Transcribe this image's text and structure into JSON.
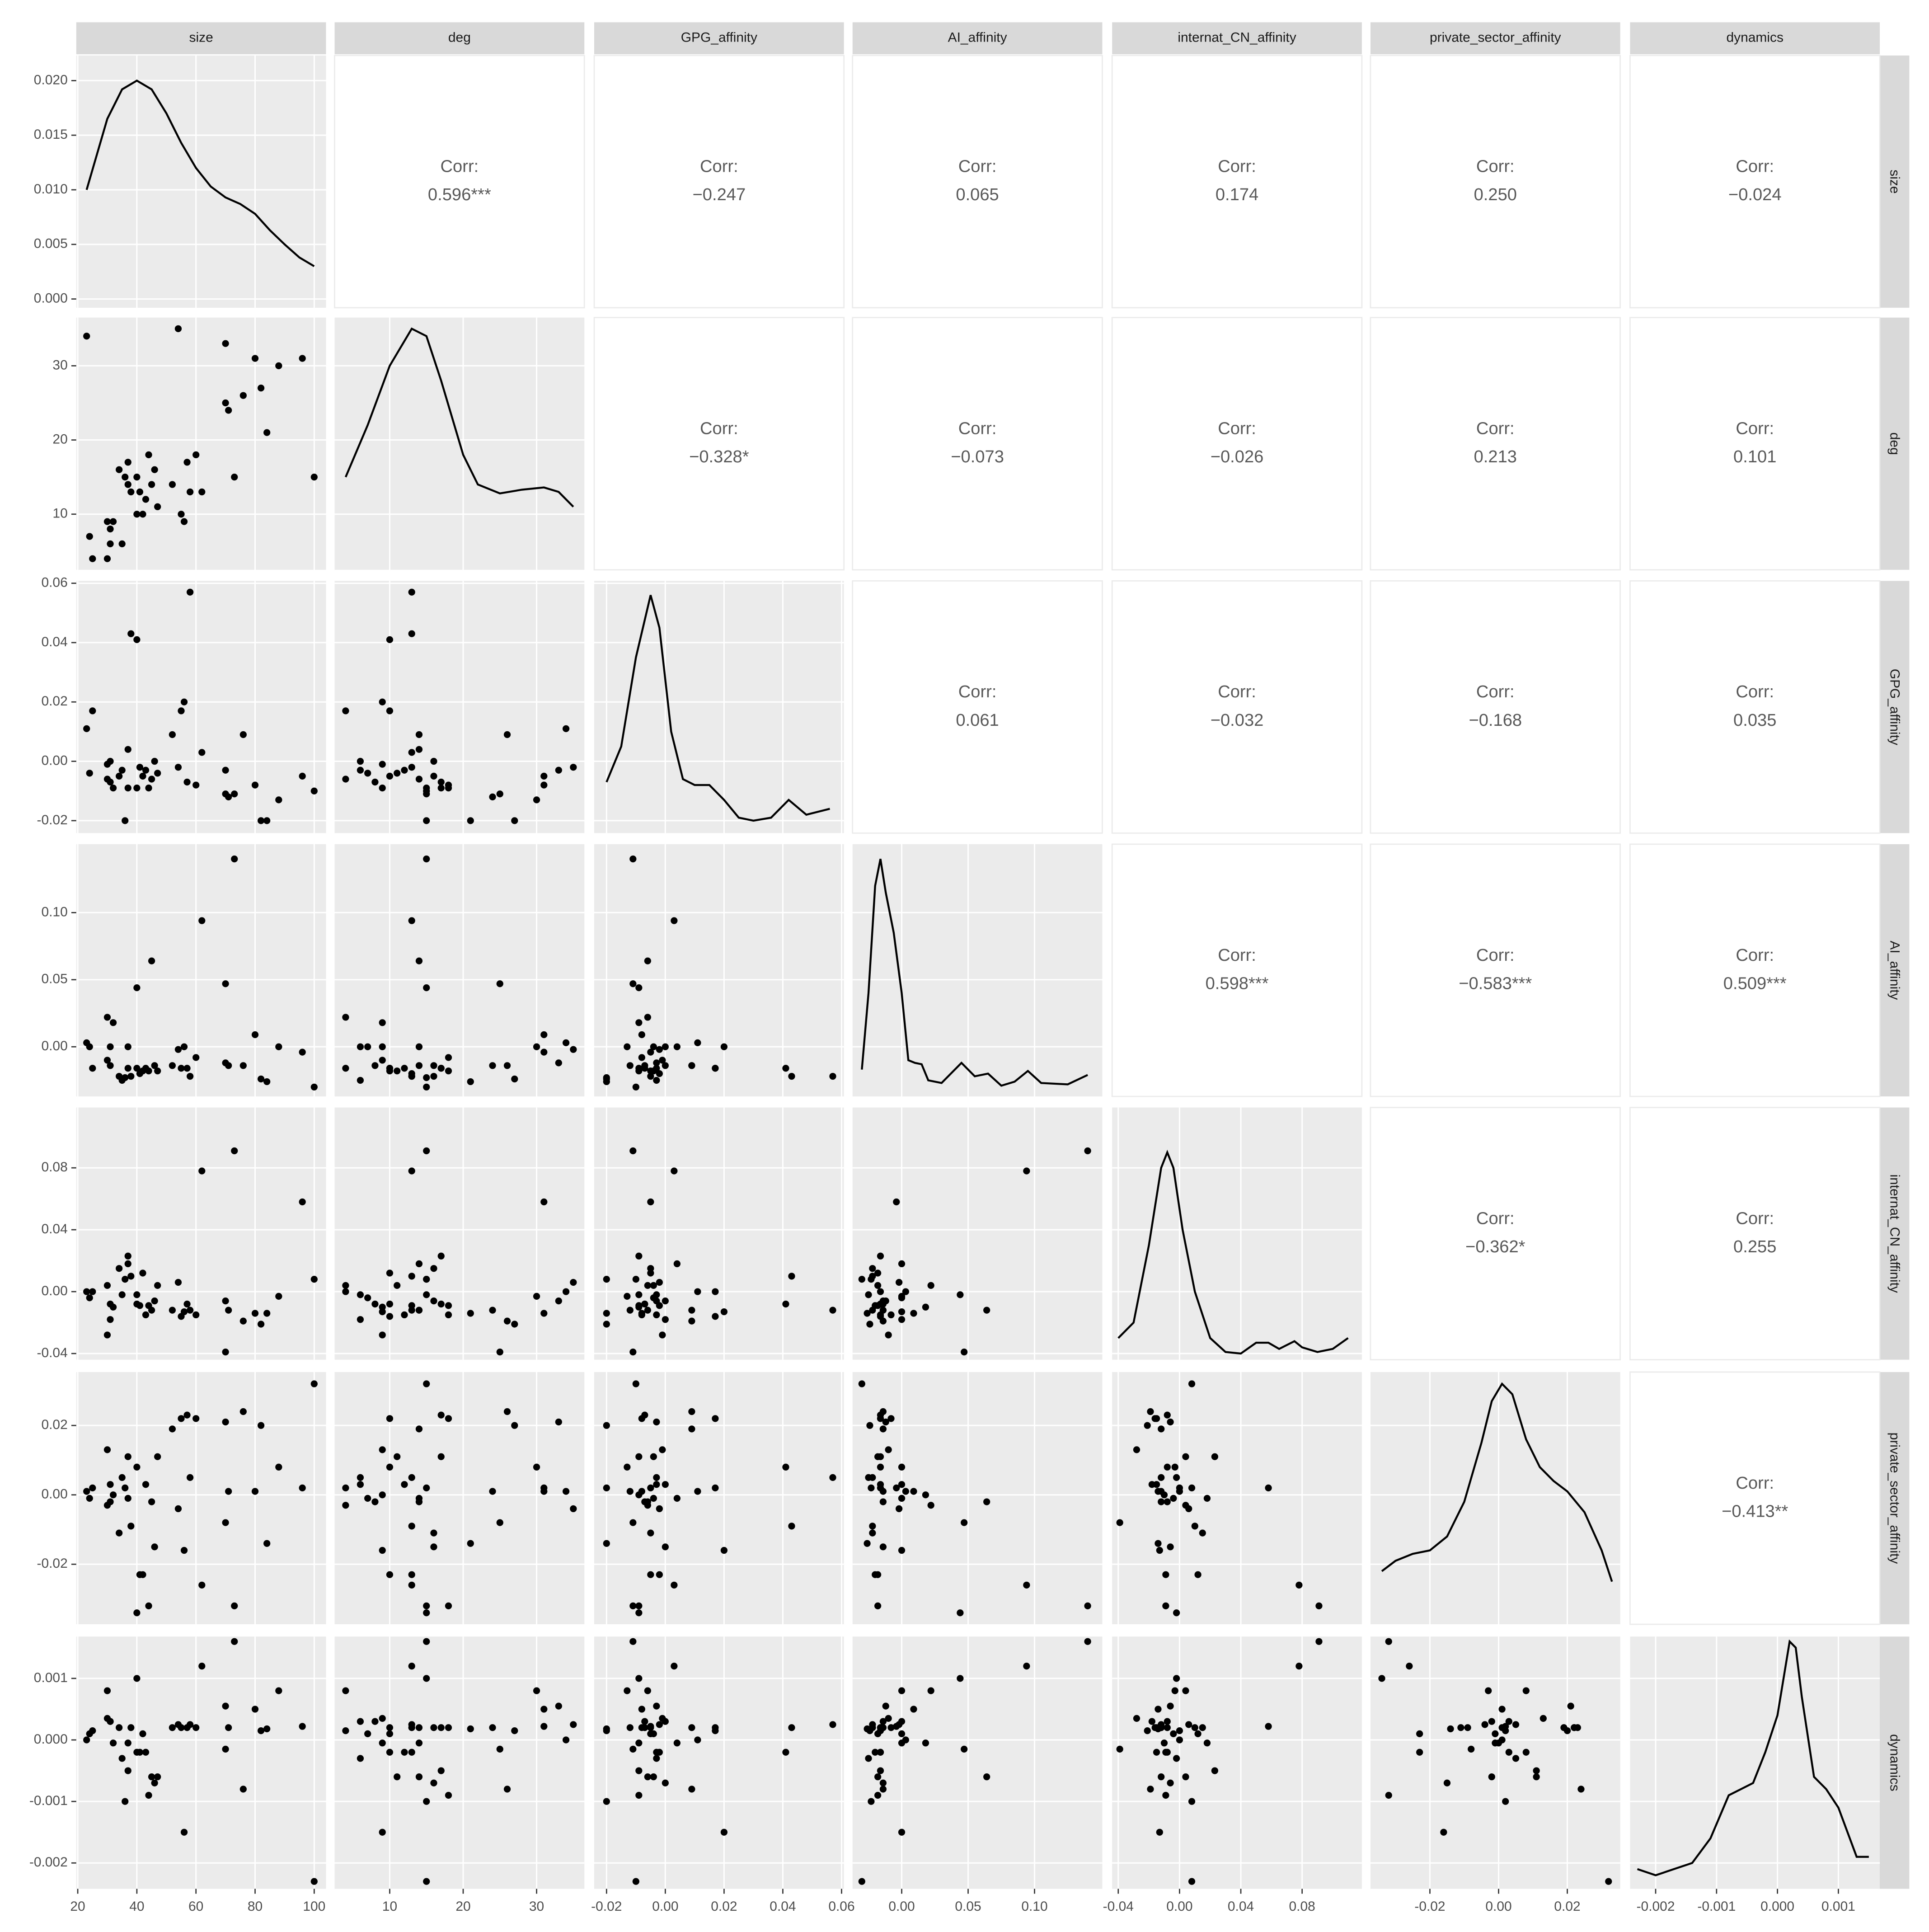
{
  "chart_data": {
    "type": "scatter-matrix",
    "corr_label": "Corr:",
    "point_color": "#000000",
    "line_color": "#000000",
    "density_ylim": [
      -0.0008,
      0.0223
    ],
    "density_yticks": [
      {
        "value": 0,
        "label": "0.000"
      },
      {
        "value": 0.005,
        "label": "0.005"
      },
      {
        "value": 0.01,
        "label": "0.010"
      },
      {
        "value": 0.015,
        "label": "0.015"
      },
      {
        "value": 0.02,
        "label": "0.020"
      }
    ],
    "variables": [
      {
        "name": "size",
        "lim": [
          19.5,
          104
        ],
        "ticks": [
          20,
          40,
          60,
          80,
          100
        ],
        "values": [
          23,
          24,
          25,
          30,
          30,
          31,
          31,
          32,
          34,
          35,
          36,
          37,
          37,
          38,
          40,
          40,
          41,
          42,
          43,
          44,
          45,
          46,
          47,
          52,
          54,
          55,
          56,
          57,
          58,
          60,
          62,
          70,
          70,
          71,
          73,
          76,
          80,
          82,
          84,
          88,
          96,
          100
        ],
        "density": {
          "x": [
            23,
            30,
            35,
            40,
            45,
            50,
            55,
            60,
            65,
            70,
            75,
            80,
            85,
            90,
            95,
            100
          ],
          "y": [
            0.01,
            0.0165,
            0.0192,
            0.02,
            0.0192,
            0.017,
            0.0143,
            0.012,
            0.0103,
            0.0093,
            0.0087,
            0.0078,
            0.0063,
            0.005,
            0.0038,
            0.003
          ]
        }
      },
      {
        "name": "deg",
        "lim": [
          2.5,
          36.5
        ],
        "ticks": [
          10,
          20,
          30
        ],
        "values": [
          34,
          7,
          4,
          4,
          9,
          6,
          8,
          9,
          16,
          6,
          15,
          17,
          14,
          13,
          15,
          10,
          13,
          10,
          12,
          18,
          14,
          16,
          11,
          14,
          35,
          10,
          9,
          17,
          13,
          18,
          13,
          33,
          25,
          24,
          15,
          26,
          31,
          27,
          21,
          30,
          31,
          15
        ],
        "density": {
          "x": [
            4,
            7,
            10,
            13,
            15,
            17,
            20,
            22,
            25,
            28,
            31,
            33,
            35
          ],
          "y": [
            15,
            22,
            30,
            35,
            34,
            28,
            18,
            14,
            12.8,
            13.3,
            13.6,
            13,
            11
          ]
        }
      },
      {
        "name": "GPG_affinity",
        "lim": [
          -0.0242,
          0.0608
        ],
        "ticks": [
          -0.02,
          {
            "value": 0,
            "label": "0.00"
          },
          0.02,
          0.04,
          0.06
        ],
        "values": [
          0.011,
          -0.004,
          0.017,
          -0.006,
          -0.001,
          0.0,
          -0.007,
          -0.009,
          -0.005,
          -0.003,
          -0.02,
          -0.009,
          0.004,
          0.043,
          -0.009,
          0.041,
          -0.002,
          -0.005,
          -0.003,
          -0.009,
          -0.006,
          0.0,
          -0.004,
          0.009,
          -0.002,
          0.017,
          0.02,
          -0.007,
          0.057,
          -0.008,
          0.003,
          -0.003,
          -0.011,
          -0.012,
          -0.011,
          0.009,
          -0.008,
          -0.02,
          -0.02,
          -0.013,
          -0.005,
          -0.01
        ],
        "density": {
          "x": [
            -0.02,
            -0.015,
            -0.01,
            -0.005,
            -0.002,
            0.002,
            0.006,
            0.01,
            0.015,
            0.02,
            0.025,
            0.03,
            0.036,
            0.042,
            0.048,
            0.056
          ],
          "y": [
            -0.007,
            0.005,
            0.035,
            0.056,
            0.045,
            0.01,
            -0.006,
            -0.008,
            -0.008,
            -0.013,
            -0.019,
            -0.02,
            -0.019,
            -0.013,
            -0.018,
            -0.016
          ]
        }
      },
      {
        "name": "AI_affinity",
        "lim": [
          -0.037,
          0.151
        ],
        "ticks": [
          {
            "value": 0,
            "label": "0.00"
          },
          0.05,
          {
            "value": 0.1,
            "label": "0.10"
          }
        ],
        "values": [
          0.003,
          0.0,
          -0.016,
          0.022,
          -0.01,
          0.0,
          -0.014,
          0.018,
          -0.022,
          -0.025,
          -0.023,
          -0.016,
          0.0,
          -0.022,
          0.044,
          -0.016,
          -0.02,
          -0.018,
          -0.016,
          -0.018,
          0.064,
          -0.014,
          -0.018,
          -0.014,
          -0.002,
          -0.016,
          0.0,
          -0.016,
          -0.022,
          -0.008,
          0.094,
          -0.012,
          0.047,
          -0.014,
          0.14,
          -0.014,
          0.009,
          -0.024,
          -0.026,
          0.0,
          -0.004,
          -0.03
        ],
        "density": {
          "x": [
            -0.03,
            -0.025,
            -0.02,
            -0.016,
            -0.012,
            -0.006,
            0.0,
            0.005,
            0.01,
            0.015,
            0.02,
            0.03,
            0.045,
            0.055,
            0.065,
            0.075,
            0.085,
            0.095,
            0.105,
            0.125,
            0.14
          ],
          "y": [
            -0.017,
            0.04,
            0.12,
            0.14,
            0.115,
            0.085,
            0.04,
            -0.01,
            -0.012,
            -0.013,
            -0.025,
            -0.027,
            -0.012,
            -0.022,
            -0.02,
            -0.029,
            -0.026,
            -0.018,
            -0.027,
            -0.028,
            -0.021
          ]
        }
      },
      {
        "name": "internat_CN_affinity",
        "lim": [
          -0.044,
          0.119
        ],
        "ticks": [
          -0.04,
          {
            "value": 0,
            "label": "0.00"
          },
          0.04,
          0.08
        ],
        "values": [
          0.0,
          -0.004,
          0.0,
          0.004,
          -0.028,
          -0.018,
          -0.008,
          -0.01,
          0.015,
          -0.002,
          0.008,
          0.023,
          0.018,
          0.01,
          -0.002,
          -0.008,
          -0.009,
          0.012,
          -0.015,
          -0.009,
          -0.012,
          -0.006,
          0.004,
          -0.012,
          0.006,
          -0.016,
          -0.013,
          -0.008,
          -0.012,
          -0.015,
          0.078,
          -0.006,
          -0.039,
          -0.012,
          0.091,
          -0.019,
          -0.014,
          -0.021,
          -0.014,
          -0.003,
          0.058,
          0.008
        ],
        "density": {
          "x": [
            -0.04,
            -0.03,
            -0.02,
            -0.012,
            -0.008,
            -0.004,
            0.002,
            0.01,
            0.02,
            0.03,
            0.04,
            0.05,
            0.058,
            0.065,
            0.075,
            0.08,
            0.09,
            0.1,
            0.11
          ],
          "y": [
            -0.03,
            -0.02,
            0.03,
            0.08,
            0.09,
            0.08,
            0.04,
            0.0,
            -0.03,
            -0.039,
            -0.04,
            -0.033,
            -0.033,
            -0.037,
            -0.032,
            -0.036,
            -0.039,
            -0.037,
            -0.03
          ]
        }
      },
      {
        "name": "private_sector_affinity",
        "lim": [
          -0.0373,
          0.0354
        ],
        "ticks": [
          -0.02,
          {
            "value": 0,
            "label": "0.00"
          },
          0.02
        ],
        "values": [
          0.001,
          -0.001,
          0.002,
          -0.003,
          0.013,
          0.003,
          -0.002,
          0.0,
          -0.011,
          0.005,
          0.002,
          0.011,
          -0.001,
          -0.009,
          -0.034,
          0.008,
          -0.023,
          -0.023,
          0.003,
          -0.032,
          -0.002,
          -0.015,
          0.011,
          0.019,
          -0.004,
          0.022,
          -0.016,
          0.023,
          0.005,
          0.022,
          -0.026,
          0.021,
          -0.008,
          0.001,
          -0.032,
          0.024,
          0.001,
          0.02,
          -0.014,
          0.008,
          0.002,
          0.032
        ],
        "density": {
          "x": [
            -0.034,
            -0.03,
            -0.025,
            -0.02,
            -0.015,
            -0.01,
            -0.005,
            -0.002,
            0.001,
            0.004,
            0.008,
            0.012,
            0.016,
            0.02,
            0.025,
            0.03,
            0.033
          ],
          "y": [
            -0.022,
            -0.019,
            -0.017,
            -0.016,
            -0.012,
            -0.002,
            0.015,
            0.027,
            0.032,
            0.029,
            0.016,
            0.008,
            0.004,
            0.001,
            -0.005,
            -0.016,
            -0.025
          ]
        }
      },
      {
        "name": "dynamics",
        "lim": [
          -0.00242,
          0.00168
        ],
        "ticks": [
          -0.002,
          -0.001,
          {
            "value": 0,
            "label": "0.000"
          },
          0.001
        ],
        "values": [
          0.0,
          0.0001,
          0.00015,
          0.0008,
          0.00035,
          0.0003,
          0.0003,
          -5e-05,
          0.0002,
          -0.0003,
          -0.001,
          -0.0005,
          -5e-05,
          0.0002,
          0.001,
          -0.0002,
          -0.0002,
          0.0001,
          -0.0002,
          -0.0009,
          -0.0006,
          -0.0007,
          -0.0006,
          0.0002,
          0.00025,
          0.0002,
          -0.0015,
          0.0002,
          0.00025,
          0.0002,
          0.0012,
          0.00055,
          -0.00015,
          0.0002,
          0.0016,
          -0.0008,
          0.0005,
          0.00015,
          0.00018,
          0.0008,
          0.00022,
          -0.0023
        ],
        "density": {
          "x": [
            -0.0023,
            -0.002,
            -0.0017,
            -0.0014,
            -0.0011,
            -0.0008,
            -0.0006,
            -0.0004,
            -0.0002,
            0.0,
            0.0002,
            0.0003,
            0.0004,
            0.0006,
            0.0008,
            0.001,
            0.0013,
            0.0015
          ],
          "y": [
            -0.0021,
            -0.0022,
            -0.0021,
            -0.002,
            -0.0016,
            -0.0009,
            -0.0008,
            -0.0007,
            -0.0002,
            0.0004,
            0.0016,
            0.0015,
            0.0007,
            -0.0006,
            -0.0008,
            -0.0011,
            -0.0019,
            -0.0019
          ]
        }
      }
    ],
    "correlations": {
      "values": [
        [
          0.596,
          -0.247,
          0.065,
          0.174,
          0.25,
          -0.024
        ],
        [
          -0.328,
          -0.073,
          -0.026,
          0.213,
          0.101
        ],
        [
          0.061,
          -0.032,
          -0.168,
          0.035
        ],
        [
          0.598,
          -0.583,
          0.509
        ],
        [
          -0.362,
          0.255
        ],
        [
          -0.413
        ]
      ],
      "value_labels": [
        [
          "0.596***",
          "−0.247",
          "0.065",
          "0.174",
          "0.250",
          "−0.024"
        ],
        [
          "−0.328*",
          "−0.073",
          "−0.026",
          "0.213",
          "0.101"
        ],
        [
          "0.061",
          "−0.032",
          "−0.168",
          "0.035"
        ],
        [
          "0.598***",
          "−0.583***",
          "0.509***"
        ],
        [
          "−0.362*",
          "0.255"
        ],
        [
          "−0.413**"
        ]
      ]
    }
  }
}
